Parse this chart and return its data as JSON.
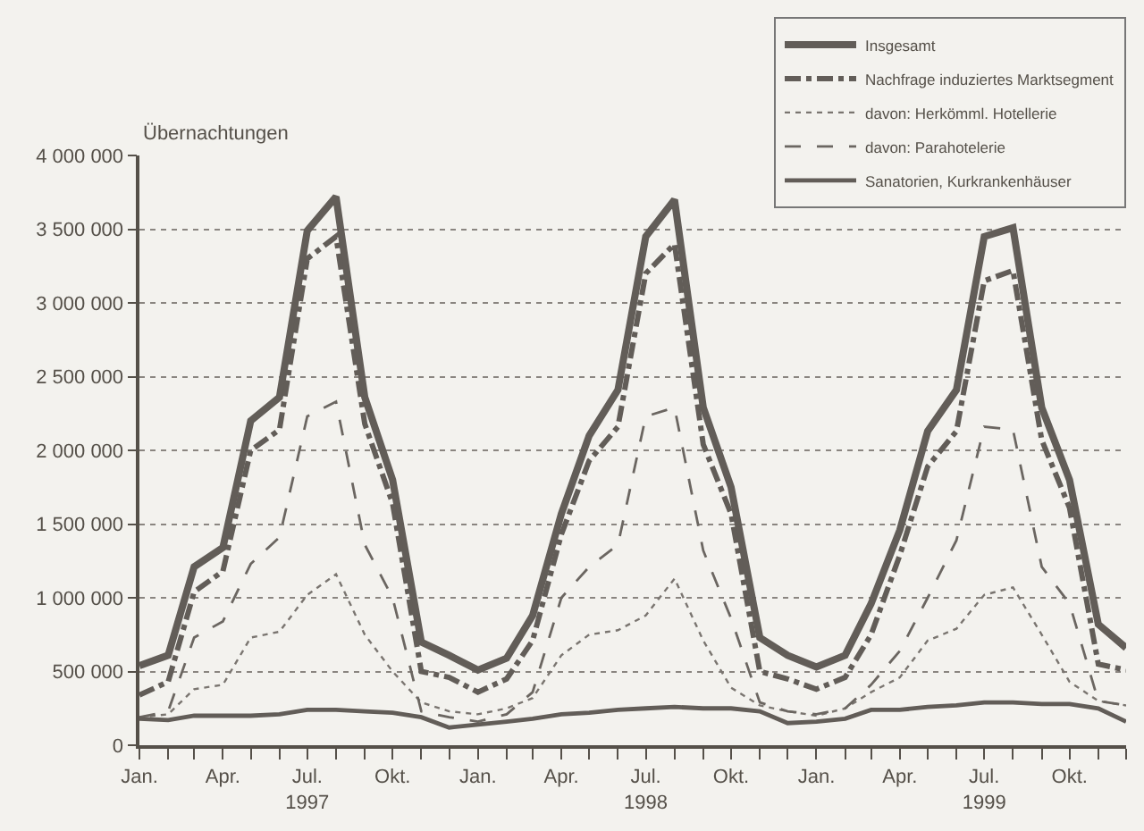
{
  "chart_data": {
    "type": "line",
    "ylabel": "Übernachtungen",
    "x": [
      "1997-01",
      "1997-02",
      "1997-03",
      "1997-04",
      "1997-05",
      "1997-06",
      "1997-07",
      "1997-08",
      "1997-09",
      "1997-10",
      "1997-11",
      "1997-12",
      "1998-01",
      "1998-02",
      "1998-03",
      "1998-04",
      "1998-05",
      "1998-06",
      "1998-07",
      "1998-08",
      "1998-09",
      "1998-10",
      "1998-11",
      "1998-12",
      "1999-01",
      "1999-02",
      "1999-03",
      "1999-04",
      "1999-05",
      "1999-06",
      "1999-07",
      "1999-08",
      "1999-09",
      "1999-10",
      "1999-11",
      "1999-12"
    ],
    "series": [
      {
        "name": "Insgesamt",
        "color": "#625d58",
        "line_style": "solid",
        "values": [
          540000,
          610000,
          1210000,
          1340000,
          2200000,
          2360000,
          3490000,
          3720000,
          2360000,
          1800000,
          700000,
          610000,
          510000,
          590000,
          880000,
          1570000,
          2100000,
          2410000,
          3450000,
          3700000,
          2290000,
          1750000,
          730000,
          610000,
          530000,
          610000,
          960000,
          1460000,
          2130000,
          2410000,
          3450000,
          3510000,
          2290000,
          1800000,
          820000,
          660000
        ]
      },
      {
        "name": "Nachfrage induziertes Marktsegment",
        "color": "#625d58",
        "line_style": "dashdot",
        "values": [
          340000,
          430000,
          1040000,
          1180000,
          2000000,
          2140000,
          3300000,
          3450000,
          2180000,
          1640000,
          500000,
          460000,
          360000,
          450000,
          710000,
          1430000,
          1930000,
          2160000,
          3200000,
          3400000,
          2040000,
          1570000,
          500000,
          450000,
          380000,
          460000,
          750000,
          1290000,
          1890000,
          2130000,
          3150000,
          3220000,
          2070000,
          1610000,
          550000,
          510000
        ]
      },
      {
        "name": "davon: Herkömml. Hotellerie",
        "color": "#7a7570",
        "line_style": "dotted",
        "values": [
          190000,
          210000,
          380000,
          410000,
          730000,
          770000,
          1020000,
          1160000,
          750000,
          500000,
          290000,
          230000,
          210000,
          250000,
          320000,
          610000,
          750000,
          780000,
          880000,
          1130000,
          710000,
          390000,
          270000,
          230000,
          200000,
          250000,
          360000,
          460000,
          710000,
          790000,
          1020000,
          1070000,
          750000,
          430000,
          300000,
          270000
        ]
      },
      {
        "name": "davon: Parahotelerie",
        "color": "#6b6661",
        "line_style": "dashed",
        "values": [
          190000,
          230000,
          730000,
          840000,
          1230000,
          1410000,
          2230000,
          2330000,
          1360000,
          1000000,
          230000,
          190000,
          160000,
          210000,
          360000,
          1000000,
          1210000,
          1360000,
          2230000,
          2290000,
          1320000,
          860000,
          290000,
          230000,
          210000,
          250000,
          410000,
          640000,
          1000000,
          1390000,
          2160000,
          2140000,
          1210000,
          960000,
          300000,
          270000
        ]
      },
      {
        "name": "Sanatorien, Kurkrankenhäuser",
        "color": "#625d58",
        "line_style": "solid",
        "values": [
          180000,
          170000,
          200000,
          200000,
          200000,
          210000,
          240000,
          240000,
          230000,
          220000,
          190000,
          120000,
          140000,
          160000,
          180000,
          210000,
          220000,
          240000,
          250000,
          260000,
          250000,
          250000,
          230000,
          150000,
          160000,
          180000,
          240000,
          240000,
          260000,
          270000,
          290000,
          290000,
          280000,
          280000,
          250000,
          160000
        ]
      }
    ],
    "xlim": [
      "1997-01",
      "1999-12"
    ],
    "xticks": [
      {
        "value": "1997-01",
        "label": "Jan."
      },
      {
        "value": "1997-02",
        "label": null
      },
      {
        "value": "1997-03",
        "label": null
      },
      {
        "value": "1997-04",
        "label": "Apr."
      },
      {
        "value": "1997-05",
        "label": null
      },
      {
        "value": "1997-06",
        "label": null
      },
      {
        "value": "1997-07",
        "label": "Jul.\n1997"
      },
      {
        "value": "1997-08",
        "label": null
      },
      {
        "value": "1997-09",
        "label": null
      },
      {
        "value": "1997-10",
        "label": "Okt."
      },
      {
        "value": "1997-11",
        "label": null
      },
      {
        "value": "1997-12",
        "label": null
      },
      {
        "value": "1998-01",
        "label": "Jan."
      },
      {
        "value": "1998-02",
        "label": null
      },
      {
        "value": "1998-03",
        "label": null
      },
      {
        "value": "1998-04",
        "label": "Apr."
      },
      {
        "value": "1998-05",
        "label": null
      },
      {
        "value": "1998-06",
        "label": null
      },
      {
        "value": "1998-07",
        "label": "Jul.\n1998"
      },
      {
        "value": "1998-08",
        "label": null
      },
      {
        "value": "1998-09",
        "label": null
      },
      {
        "value": "1998-10",
        "label": "Okt."
      },
      {
        "value": "1998-11",
        "label": null
      },
      {
        "value": "1998-12",
        "label": null
      },
      {
        "value": "1999-01",
        "label": "Jan."
      },
      {
        "value": "1999-02",
        "label": null
      },
      {
        "value": "1999-03",
        "label": null
      },
      {
        "value": "1999-04",
        "label": "Apr."
      },
      {
        "value": "1999-05",
        "label": null
      },
      {
        "value": "1999-06",
        "label": null
      },
      {
        "value": "1999-07",
        "label": "Jul.\n1999"
      },
      {
        "value": "1999-08",
        "label": null
      },
      {
        "value": "1999-09",
        "label": null
      },
      {
        "value": "1999-10",
        "label": "Okt."
      },
      {
        "value": "1999-11",
        "label": null
      },
      {
        "value": "1999-12",
        "label": null
      }
    ],
    "ylim": [
      0,
      4000000
    ],
    "yticks": [
      {
        "value": 0,
        "label": "0"
      },
      {
        "value": 500000,
        "label": "500 000"
      },
      {
        "value": 1000000,
        "label": "1 000 000"
      },
      {
        "value": 1500000,
        "label": "1 500 000"
      },
      {
        "value": 2000000,
        "label": "2 000 000"
      },
      {
        "value": 2500000,
        "label": "2 500 000"
      },
      {
        "value": 3000000,
        "label": "3 000 000"
      },
      {
        "value": 3500000,
        "label": "3 500 000"
      },
      {
        "value": 4000000,
        "label": "4 000 000"
      }
    ],
    "grid": "y",
    "legend": "top right",
    "marker": "none"
  }
}
